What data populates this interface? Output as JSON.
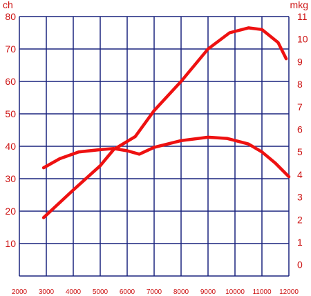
{
  "chart_data": {
    "type": "line",
    "title": "",
    "xlabel": "",
    "x_ticks": [
      2000,
      3000,
      4000,
      5000,
      6000,
      7000,
      8000,
      9000,
      10000,
      11000,
      12000
    ],
    "xlim": [
      2000,
      12000
    ],
    "y_left": {
      "unit_label": "ch",
      "ylim": [
        0,
        80
      ],
      "ticks": [
        10,
        20,
        30,
        40,
        50,
        60,
        70,
        80
      ]
    },
    "y_right": {
      "unit_label": "mkg",
      "ylim": [
        -0.5,
        11
      ],
      "ticks": [
        0,
        1,
        2,
        3,
        4,
        5,
        6,
        7,
        8,
        9,
        10,
        11
      ]
    },
    "grid": true,
    "colors": {
      "grid": "#1a237e",
      "line": "#ee1111",
      "text": "#cc1111"
    },
    "series": [
      {
        "axis": "left",
        "points": [
          [
            2900,
            18
          ],
          [
            4000,
            26.5
          ],
          [
            5000,
            34
          ],
          [
            5500,
            39
          ],
          [
            6300,
            43
          ],
          [
            7000,
            51
          ],
          [
            8000,
            60
          ],
          [
            9000,
            70
          ],
          [
            9800,
            75
          ],
          [
            10500,
            76.5
          ],
          [
            11000,
            76
          ],
          [
            11600,
            72
          ],
          [
            11900,
            67
          ]
        ]
      },
      {
        "axis": "right",
        "points": [
          [
            2900,
            4.3
          ],
          [
            3500,
            4.7
          ],
          [
            4200,
            5.0
          ],
          [
            5000,
            5.1
          ],
          [
            5500,
            5.15
          ],
          [
            6000,
            5.05
          ],
          [
            6450,
            4.9
          ],
          [
            7000,
            5.2
          ],
          [
            8000,
            5.5
          ],
          [
            9000,
            5.65
          ],
          [
            9700,
            5.6
          ],
          [
            10500,
            5.35
          ],
          [
            11000,
            5.0
          ],
          [
            11500,
            4.5
          ],
          [
            12000,
            3.9
          ]
        ]
      }
    ]
  }
}
